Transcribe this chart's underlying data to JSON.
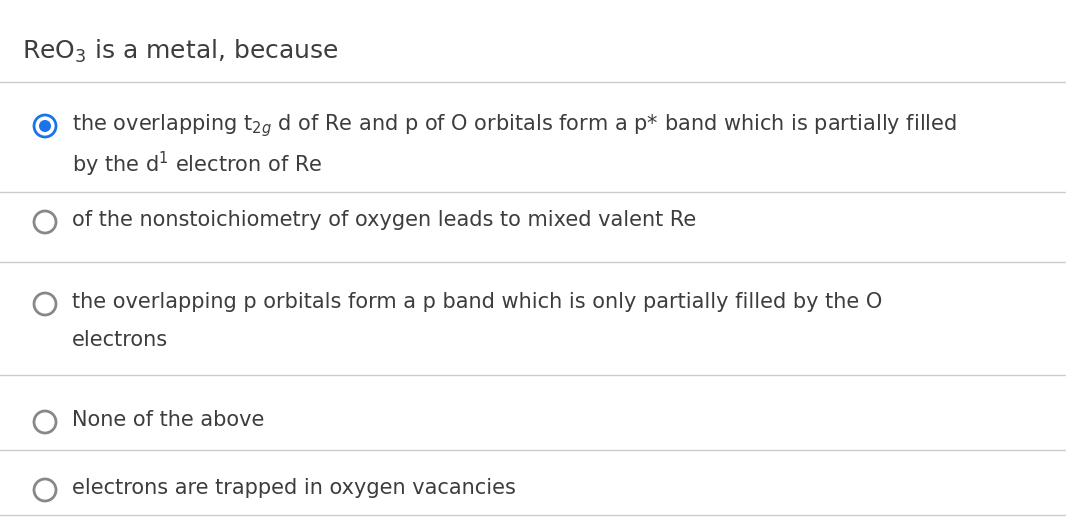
{
  "title": "ReO$_3$ is a metal, because",
  "title_color": "#3d3d3d",
  "title_fontsize": 18,
  "background_color": "#ffffff",
  "divider_color": "#cccccc",
  "options": [
    {
      "id": 1,
      "selected": true,
      "radio_outer_color": "#1a73e8",
      "radio_inner_color": "#1a73e8",
      "lines": [
        "the overlapping t$_{2g}$ d of Re and p of O orbitals form a p* band which is partially filled",
        "by the d$^1$ electron of Re"
      ]
    },
    {
      "id": 2,
      "selected": false,
      "radio_outer_color": "#888888",
      "radio_inner_color": "#ffffff",
      "lines": [
        "of the nonstoichiometry of oxygen leads to mixed valent Re"
      ]
    },
    {
      "id": 3,
      "selected": false,
      "radio_outer_color": "#888888",
      "radio_inner_color": "#ffffff",
      "lines": [
        "the overlapping p orbitals form a p band which is only partially filled by the O",
        "electrons"
      ]
    },
    {
      "id": 4,
      "selected": false,
      "radio_outer_color": "#888888",
      "radio_inner_color": "#ffffff",
      "lines": [
        "None of the above"
      ]
    },
    {
      "id": 5,
      "selected": false,
      "radio_outer_color": "#888888",
      "radio_inner_color": "#ffffff",
      "lines": [
        "electrons are trapped in oxygen vacancies"
      ]
    }
  ],
  "text_color": "#3d3d3d",
  "text_fontsize": 15,
  "figwidth": 10.66,
  "figheight": 5.26,
  "dpi": 100
}
